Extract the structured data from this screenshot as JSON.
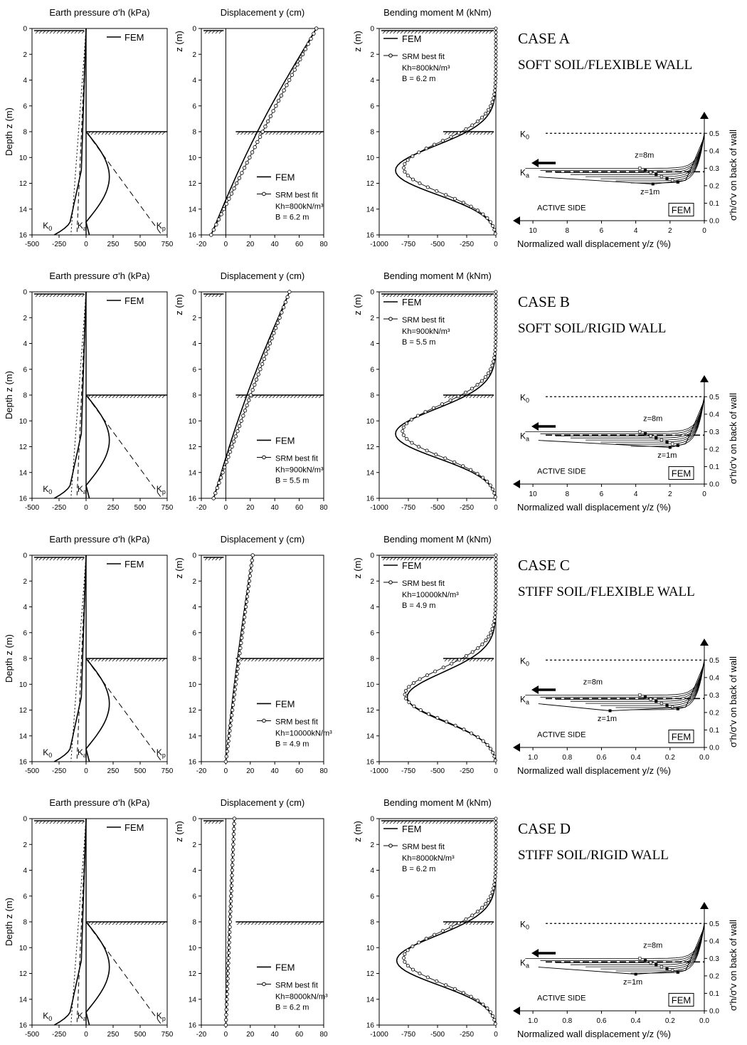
{
  "chart_data": {
    "type": "line",
    "cases": [
      {
        "id": "A",
        "heading": "CASE A",
        "subtitle": "SOFT SOIL/FLEXIBLE WALL",
        "kh": "800",
        "b": "6.2 m",
        "disp": {
          "xlim": [
            -20,
            80
          ],
          "ticks": [
            -20,
            0,
            20,
            40,
            60,
            80
          ],
          "top": 74,
          "bottom": -12
        },
        "moment": {
          "fem_min": -860,
          "srm_min": -790
        },
        "cal": {
          "xmax": 11,
          "ticks": [
            10,
            8,
            6,
            4,
            2,
            0
          ],
          "labels": [
            "10",
            "8",
            "6",
            "4",
            "2",
            "0"
          ],
          "z8x": 3.5,
          "z1x": 3.0
        }
      },
      {
        "id": "B",
        "heading": "CASE B",
        "subtitle": "SOFT SOIL/RIGID WALL",
        "kh": "900",
        "b": "5.5 m",
        "disp": {
          "xlim": [
            -20,
            80
          ],
          "ticks": [
            -20,
            0,
            20,
            40,
            60,
            80
          ],
          "top": 52,
          "bottom": -10
        },
        "moment": {
          "fem_min": -860,
          "srm_min": -800
        },
        "cal": {
          "xmax": 11,
          "ticks": [
            10,
            8,
            6,
            4,
            2,
            0
          ],
          "labels": [
            "10",
            "8",
            "6",
            "4",
            "2",
            "0"
          ],
          "z8x": 3.0,
          "z1x": 2.0
        }
      },
      {
        "id": "C",
        "heading": "CASE C",
        "subtitle": "STIFF SOIL/FLEXIBLE WALL",
        "kh": "10000",
        "b": "4.9 m",
        "disp": {
          "xlim": [
            -20,
            80
          ],
          "ticks": [
            -20,
            0,
            20,
            40,
            60,
            80
          ],
          "top": 22,
          "bottom": 0
        },
        "moment": {
          "fem_min": -760,
          "srm_min": -780
        },
        "cal": {
          "xmax": 1.1,
          "ticks": [
            1.0,
            0.8,
            0.6,
            0.4,
            0.2,
            0.0
          ],
          "labels": [
            "1.0",
            "0.8",
            "0.6",
            "0.4",
            "0.2",
            "0.0"
          ],
          "z8x": 0.65,
          "z1x": 0.55
        }
      },
      {
        "id": "D",
        "heading": "CASE D",
        "subtitle": "STIFF SOIL/RIGID WALL",
        "kh": "8000",
        "b": "6.2 m",
        "disp": {
          "xlim": [
            -20,
            80
          ],
          "ticks": [
            -20,
            0,
            20,
            40,
            60,
            80
          ],
          "top": 7,
          "bottom": 0
        },
        "moment": {
          "fem_min": -850,
          "srm_min": -790
        },
        "cal": {
          "xmax": 1.1,
          "ticks": [
            1.0,
            0.8,
            0.6,
            0.4,
            0.2,
            0.0
          ],
          "labels": [
            "1.0",
            "0.8",
            "0.6",
            "0.4",
            "0.2",
            "0.0"
          ],
          "z8x": 0.3,
          "z1x": 0.4
        }
      }
    ],
    "earth_pressure": {
      "title": "Earth pressure σ'h (kPa)",
      "xlim": [
        -500,
        750
      ],
      "ticks": [
        -500,
        -250,
        0,
        250,
        500,
        750
      ],
      "tick_labels": [
        "-500",
        "-250",
        "0",
        "250",
        "500",
        "750"
      ],
      "ylabel": "Depth z (m)"
    },
    "displacement": {
      "title": "Displacement y (cm)",
      "ylabel": "z (m)"
    },
    "bending_moment": {
      "title": "Bending moment M (kNm)",
      "xlim": [
        -1000,
        0
      ],
      "ticks": [
        -1000,
        -750,
        -500,
        -250,
        0
      ],
      "tick_labels": [
        "-1000",
        "-750",
        "-500",
        "-250",
        "0"
      ],
      "ylabel": "z (m)"
    },
    "depth": {
      "ylim": [
        0,
        16
      ],
      "ticks": [
        0,
        2,
        4,
        6,
        8,
        10,
        12,
        14,
        16
      ],
      "tick_labels": [
        "0",
        "2",
        "4",
        "6",
        "8",
        "10",
        "12",
        "14",
        "16"
      ],
      "excavation": 8
    },
    "calibration": {
      "ylim": [
        0,
        0.55
      ],
      "ticks": [
        0,
        0.1,
        0.2,
        0.3,
        0.4,
        0.5
      ],
      "tick_labels": [
        "0.0",
        "0.1",
        "0.2",
        "0.3",
        "0.4",
        "0.5"
      ],
      "k0": 0.5,
      "ka": 0.28,
      "xlabel": "Normalized wall displacement  y/z (%)",
      "ylabel": "σ'h/σ'v  on back of wall",
      "active": "ACTIVE SIDE",
      "fem_box": "FEM",
      "z8": "z=8m",
      "z1": "z=1m",
      "k0_label": "K0",
      "ka_label": "Ka"
    },
    "legend": {
      "fem": "FEM",
      "srm": "SRM best fit",
      "kh_unit": "kN/m³",
      "kh_prefix": "Kh=",
      "b_prefix": "B = "
    },
    "lines": {
      "k0": "K0",
      "ka": "Ka",
      "kp": "Kp"
    }
  }
}
